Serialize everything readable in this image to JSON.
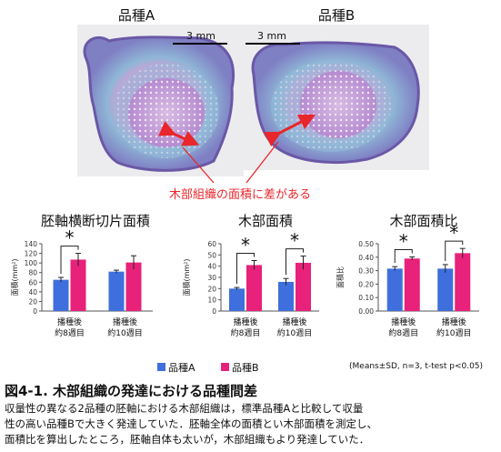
{
  "photos": {
    "left": {
      "label": "品種A",
      "scale": "3 mm"
    },
    "right": {
      "label": "品種B",
      "scale": "3 mm"
    },
    "annotation": "木部組織の面積に差がある"
  },
  "legend": {
    "items": [
      {
        "label": "品種A",
        "color": "#3e6fdc"
      },
      {
        "label": "品種B",
        "color": "#e8217a"
      }
    ],
    "note": "(Means±SD, n=3, t-test p<0.05)"
  },
  "figure": {
    "title": "図4-1. 木部組織の発達における品種間差",
    "caption_lines": [
      "収量性の異なる2品種の胚軸における木部組織は，標準品種Aと比較して収量",
      "性の高い品種Bで大きく発達していた．胚軸全体の面積とい木部面積を測定し、",
      "面積比を算出したところ，胚軸自体も太いが，木部組織もより発達していた．"
    ]
  },
  "chart_data": [
    {
      "type": "bar",
      "title": "胚軸横断切片面積",
      "ylabel": "面積(mm²)",
      "ylim": [
        0,
        140
      ],
      "yticks": [
        0,
        20,
        40,
        60,
        80,
        100,
        120,
        140
      ],
      "categories": [
        [
          "播種後",
          "約8週目"
        ],
        [
          "播種後",
          "約10週目"
        ]
      ],
      "series": [
        {
          "name": "品種A",
          "values": [
            65,
            82
          ],
          "errors": [
            5,
            3
          ]
        },
        {
          "name": "品種B",
          "values": [
            107,
            101
          ],
          "errors": [
            13,
            14
          ]
        }
      ],
      "significant": [
        true,
        false
      ],
      "significance_mark": "*"
    },
    {
      "type": "bar",
      "title": "木部面積",
      "ylabel": "面積(mm²)",
      "ylim": [
        0,
        60
      ],
      "yticks": [
        0,
        10,
        20,
        30,
        40,
        50,
        60
      ],
      "categories": [
        [
          "播種後",
          "約8週目"
        ],
        [
          "播種後",
          "約10週目"
        ]
      ],
      "series": [
        {
          "name": "品種A",
          "values": [
            20,
            26
          ],
          "errors": [
            1,
            3
          ]
        },
        {
          "name": "品種B",
          "values": [
            41,
            43
          ],
          "errors": [
            4,
            6
          ]
        }
      ],
      "significant": [
        true,
        true
      ],
      "significance_mark": "*"
    },
    {
      "type": "bar",
      "title": "木部面積比",
      "ylabel": "面積比",
      "ylim": [
        0,
        0.5
      ],
      "yticks": [
        0,
        0.1,
        0.2,
        0.3,
        0.4,
        0.5
      ],
      "ytick_labels": [
        "0.00",
        "0.10",
        "0.20",
        "0.30",
        "0.40",
        "0.50"
      ],
      "categories": [
        [
          "播種後",
          "約8週目"
        ],
        [
          "播種後",
          "約10週目"
        ]
      ],
      "series": [
        {
          "name": "品種A",
          "values": [
            0.315,
            0.315
          ],
          "errors": [
            0.015,
            0.03
          ]
        },
        {
          "name": "品種B",
          "values": [
            0.39,
            0.43
          ],
          "errors": [
            0.012,
            0.035
          ]
        }
      ],
      "significant": [
        true,
        true
      ],
      "significance_mark": "*"
    }
  ]
}
